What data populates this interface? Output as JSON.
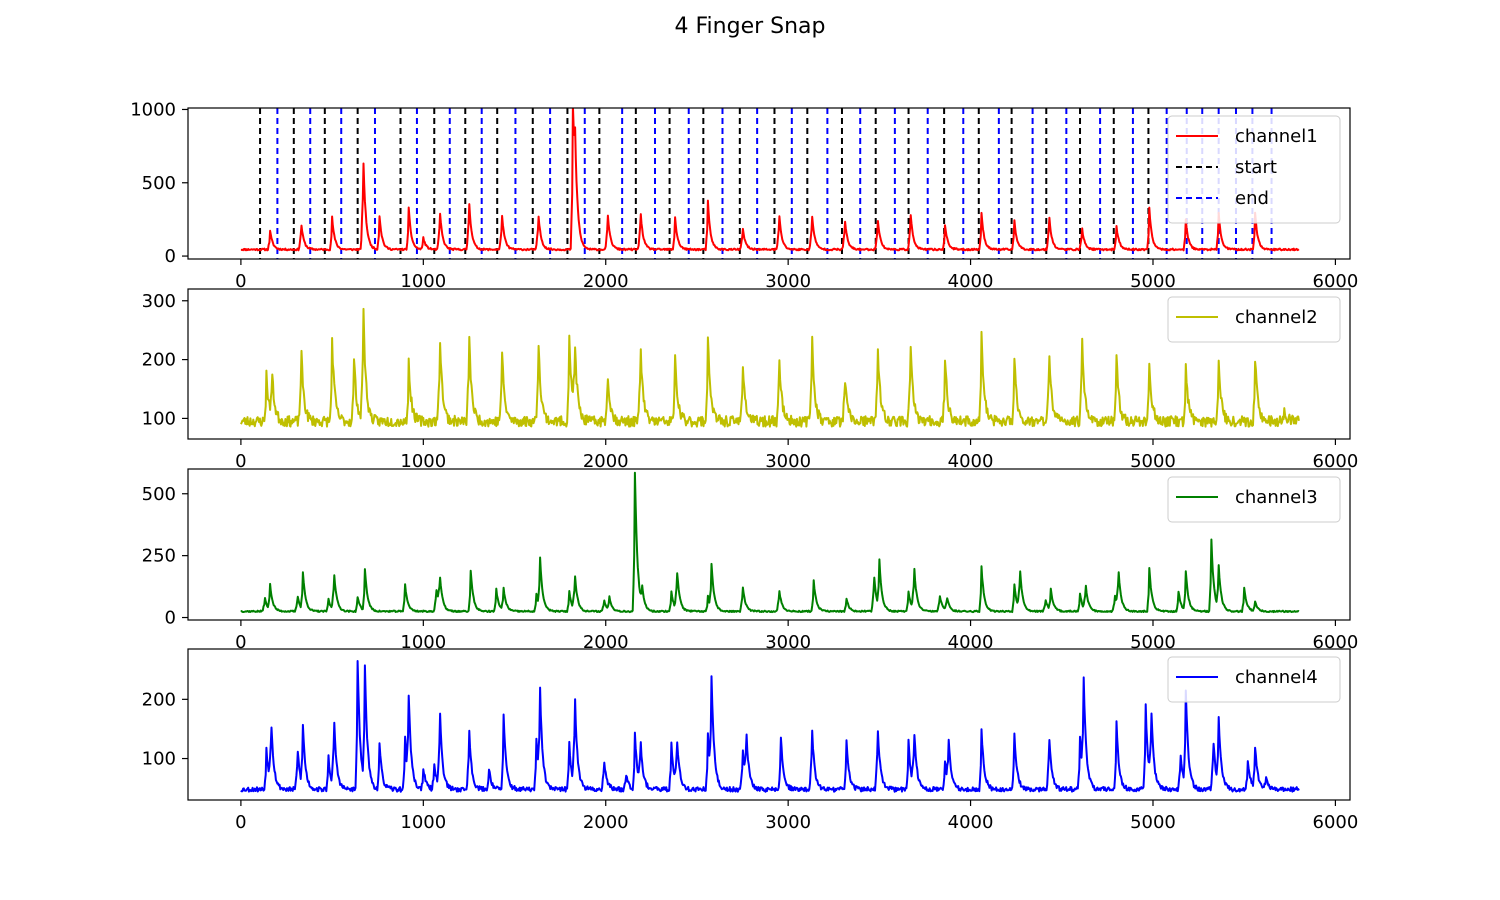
{
  "figure": {
    "title": "4 Finger Snap"
  },
  "chart_data": [
    {
      "type": "line",
      "xlim": [
        -290,
        6080
      ],
      "ylim": [
        -20,
        1010
      ],
      "xticks": [
        0,
        1000,
        2000,
        3000,
        4000,
        5000,
        6000
      ],
      "yticks": [
        0,
        500,
        1000
      ],
      "legend_position": "top-right",
      "series": [
        {
          "name": "channel1",
          "color": "#ff0000",
          "style": "solid",
          "baseline": 45,
          "noise": 6,
          "seed": 11,
          "x_range": [
            0,
            5800
          ],
          "peaks": [
            [
              160,
              130
            ],
            [
              330,
              190
            ],
            [
              500,
              220
            ],
            [
              670,
              680
            ],
            [
              760,
              230
            ],
            [
              920,
              280
            ],
            [
              1000,
              80
            ],
            [
              1090,
              280
            ],
            [
              1250,
              360
            ],
            [
              1430,
              260
            ],
            [
              1630,
              260
            ],
            [
              1820,
              930
            ],
            [
              1830,
              500
            ],
            [
              2010,
              260
            ],
            [
              2190,
              280
            ],
            [
              2380,
              220
            ],
            [
              2560,
              330
            ],
            [
              2750,
              160
            ],
            [
              2950,
              260
            ],
            [
              3130,
              260
            ],
            [
              3310,
              220
            ],
            [
              3490,
              230
            ],
            [
              3670,
              270
            ],
            [
              3860,
              170
            ],
            [
              4060,
              250
            ],
            [
              4240,
              200
            ],
            [
              4430,
              250
            ],
            [
              4610,
              160
            ],
            [
              4800,
              160
            ],
            [
              4980,
              280
            ],
            [
              5180,
              200
            ],
            [
              5360,
              250
            ],
            [
              5560,
              250
            ]
          ]
        },
        {
          "name": "start",
          "color": "#000000",
          "style": "dashed",
          "vlines": [
            105,
            290,
            460,
            640,
            875,
            1060,
            1230,
            1405,
            1600,
            1790,
            1965,
            2165,
            2350,
            2535,
            2735,
            2925,
            3105,
            3295,
            3480,
            3660,
            3855,
            4045,
            4225,
            4415,
            4600,
            4785,
            4975
          ]
        },
        {
          "name": "end",
          "color": "#0000ff",
          "style": "dashed",
          "vlines": [
            200,
            380,
            550,
            735,
            965,
            1145,
            1320,
            1505,
            1695,
            1885,
            2090,
            2270,
            2455,
            2640,
            2830,
            3020,
            3215,
            3395,
            3585,
            3765,
            3960,
            4155,
            4340,
            4525,
            4710,
            4890,
            5075,
            5185,
            5270,
            5360,
            5455,
            5545,
            5650
          ]
        }
      ]
    },
    {
      "type": "line",
      "xlim": [
        -290,
        6080
      ],
      "ylim": [
        65,
        320
      ],
      "xticks": [
        0,
        1000,
        2000,
        3000,
        4000,
        5000,
        6000
      ],
      "yticks": [
        100,
        200,
        300
      ],
      "legend_position": "top-right",
      "series": [
        {
          "name": "channel2",
          "color": "#bfbf00",
          "style": "solid",
          "baseline": 95,
          "noise": 9,
          "seed": 23,
          "x_range": [
            0,
            5800
          ],
          "peaks": [
            [
              140,
              80
            ],
            [
              170,
              80
            ],
            [
              330,
              130
            ],
            [
              500,
              140
            ],
            [
              620,
              110
            ],
            [
              670,
              210
            ],
            [
              920,
              100
            ],
            [
              1090,
              160
            ],
            [
              1250,
              160
            ],
            [
              1430,
              130
            ],
            [
              1630,
              150
            ],
            [
              1800,
              150
            ],
            [
              1830,
              130
            ],
            [
              2010,
              90
            ],
            [
              2190,
              140
            ],
            [
              2380,
              110
            ],
            [
              2560,
              150
            ],
            [
              2750,
              110
            ],
            [
              2950,
              120
            ],
            [
              3130,
              160
            ],
            [
              3310,
              80
            ],
            [
              3490,
              140
            ],
            [
              3670,
              140
            ],
            [
              3860,
              110
            ],
            [
              4060,
              150
            ],
            [
              4240,
              110
            ],
            [
              4430,
              130
            ],
            [
              4610,
              160
            ],
            [
              4800,
              110
            ],
            [
              4980,
              100
            ],
            [
              5180,
              90
            ],
            [
              5360,
              110
            ],
            [
              5560,
              110
            ],
            [
              5720,
              20
            ]
          ]
        }
      ]
    },
    {
      "type": "line",
      "xlim": [
        -290,
        6080
      ],
      "ylim": [
        -10,
        600
      ],
      "xticks": [
        0,
        1000,
        2000,
        3000,
        4000,
        5000,
        6000
      ],
      "yticks": [
        0,
        250,
        500
      ],
      "legend_position": "top-right",
      "series": [
        {
          "name": "channel3",
          "color": "#008000",
          "style": "solid",
          "baseline": 25,
          "noise": 3,
          "seed": 37,
          "x_range": [
            0,
            5800
          ],
          "peaks": [
            [
              130,
              60
            ],
            [
              160,
              105
            ],
            [
              310,
              70
            ],
            [
              340,
              150
            ],
            [
              480,
              50
            ],
            [
              510,
              165
            ],
            [
              640,
              60
            ],
            [
              680,
              170
            ],
            [
              900,
              110
            ],
            [
              1070,
              100
            ],
            [
              1090,
              135
            ],
            [
              1260,
              165
            ],
            [
              1400,
              90
            ],
            [
              1440,
              90
            ],
            [
              1620,
              70
            ],
            [
              1640,
              200
            ],
            [
              1800,
              80
            ],
            [
              1830,
              155
            ],
            [
              1990,
              50
            ],
            [
              2020,
              55
            ],
            [
              2160,
              560
            ],
            [
              2200,
              70
            ],
            [
              2360,
              80
            ],
            [
              2390,
              170
            ],
            [
              2560,
              60
            ],
            [
              2580,
              175
            ],
            [
              2750,
              110
            ],
            [
              2950,
              95
            ],
            [
              3140,
              125
            ],
            [
              3320,
              50
            ],
            [
              3470,
              160
            ],
            [
              3500,
              190
            ],
            [
              3660,
              80
            ],
            [
              3690,
              185
            ],
            [
              3830,
              70
            ],
            [
              3870,
              60
            ],
            [
              4060,
              180
            ],
            [
              4240,
              110
            ],
            [
              4270,
              175
            ],
            [
              4410,
              50
            ],
            [
              4440,
              85
            ],
            [
              4600,
              70
            ],
            [
              4630,
              110
            ],
            [
              4790,
              70
            ],
            [
              4810,
              165
            ],
            [
              4980,
              175
            ],
            [
              5140,
              80
            ],
            [
              5180,
              160
            ],
            [
              5320,
              290
            ],
            [
              5360,
              170
            ],
            [
              5500,
              95
            ],
            [
              5560,
              40
            ]
          ]
        }
      ]
    },
    {
      "type": "line",
      "xlim": [
        -290,
        6080
      ],
      "ylim": [
        30,
        285
      ],
      "xticks": [
        0,
        1000,
        2000,
        3000,
        4000,
        5000,
        6000
      ],
      "yticks": [
        100,
        200
      ],
      "legend_position": "top-right",
      "series": [
        {
          "name": "channel4",
          "color": "#0000ff",
          "style": "solid",
          "baseline": 48,
          "noise": 4,
          "seed": 53,
          "x_range": [
            0,
            5800
          ],
          "peaks": [
            [
              140,
              70
            ],
            [
              165,
              120
            ],
            [
              310,
              75
            ],
            [
              340,
              100
            ],
            [
              480,
              55
            ],
            [
              510,
              120
            ],
            [
              640,
              220
            ],
            [
              680,
              200
            ],
            [
              760,
              75
            ],
            [
              900,
              90
            ],
            [
              920,
              140
            ],
            [
              1000,
              35
            ],
            [
              1060,
              45
            ],
            [
              1090,
              140
            ],
            [
              1250,
              110
            ],
            [
              1360,
              35
            ],
            [
              1440,
              125
            ],
            [
              1620,
              85
            ],
            [
              1640,
              150
            ],
            [
              1800,
              80
            ],
            [
              1830,
              165
            ],
            [
              1990,
              55
            ],
            [
              2110,
              30
            ],
            [
              2160,
              95
            ],
            [
              2190,
              80
            ],
            [
              2360,
              80
            ],
            [
              2390,
              85
            ],
            [
              2560,
              95
            ],
            [
              2580,
              170
            ],
            [
              2750,
              75
            ],
            [
              2770,
              85
            ],
            [
              2960,
              90
            ],
            [
              3130,
              110
            ],
            [
              3320,
              85
            ],
            [
              3490,
              115
            ],
            [
              3660,
              80
            ],
            [
              3690,
              100
            ],
            [
              3860,
              50
            ],
            [
              3880,
              75
            ],
            [
              4060,
              105
            ],
            [
              4240,
              95
            ],
            [
              4430,
              100
            ],
            [
              4600,
              90
            ],
            [
              4620,
              170
            ],
            [
              4800,
              115
            ],
            [
              4960,
              140
            ],
            [
              4990,
              130
            ],
            [
              5150,
              70
            ],
            [
              5180,
              160
            ],
            [
              5330,
              90
            ],
            [
              5360,
              110
            ],
            [
              5520,
              50
            ],
            [
              5560,
              70
            ],
            [
              5620,
              20
            ]
          ]
        }
      ]
    }
  ]
}
